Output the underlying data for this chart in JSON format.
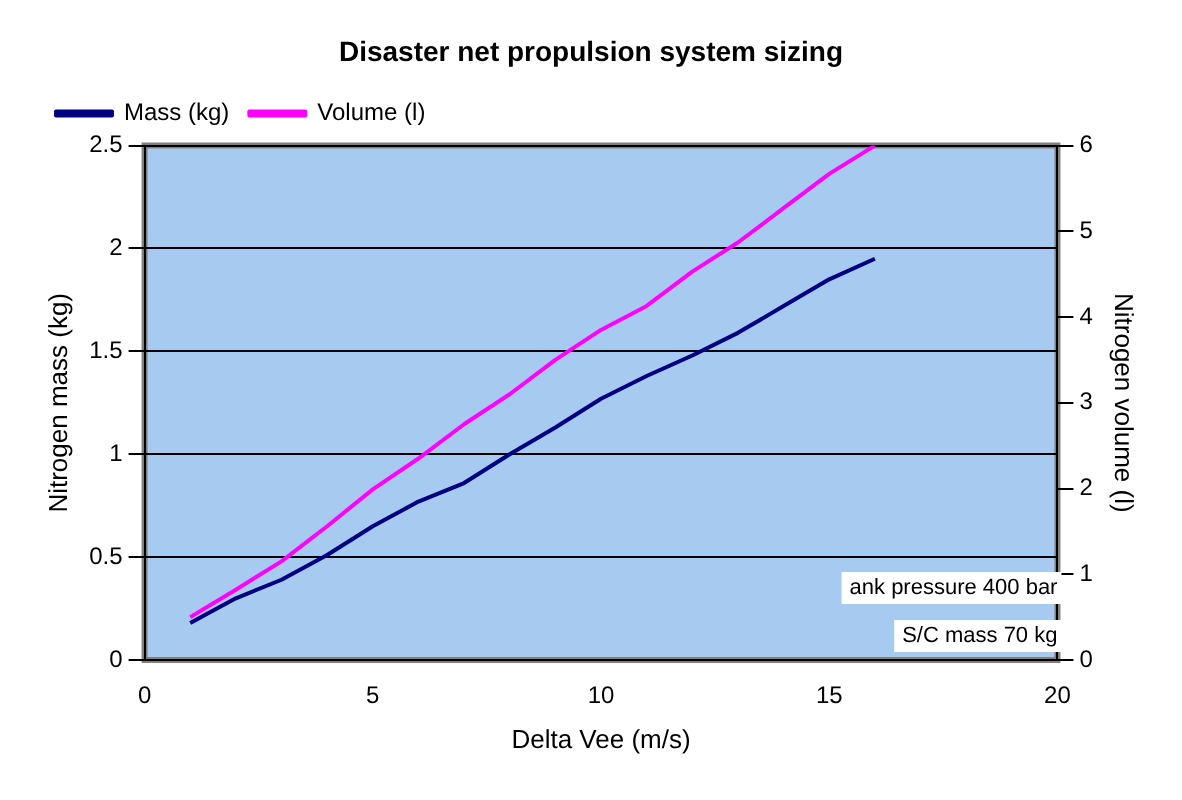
{
  "chart_data": {
    "type": "line",
    "title": "Disaster net propulsion system sizing",
    "xlabel": "Delta Vee (m/s)",
    "ylabel": "Nitrogen mass (kg)",
    "y2label": "Nitrogen volume (l)",
    "x": [
      1,
      2,
      3,
      4,
      5,
      6,
      7,
      8,
      9,
      10,
      11,
      12,
      13,
      14,
      15,
      16
    ],
    "series": [
      {
        "name": "Mass (kg)",
        "color": "#000080",
        "values": [
          0.18,
          0.3,
          0.39,
          0.51,
          0.65,
          0.77,
          0.86,
          1.0,
          1.13,
          1.27,
          1.38,
          1.48,
          1.59,
          1.72,
          1.85,
          1.95
        ]
      },
      {
        "name": "Volume (l)",
        "color": "#ff00ff",
        "axis": "y2",
        "values": [
          0.5,
          0.82,
          1.15,
          1.56,
          1.99,
          2.35,
          2.75,
          3.1,
          3.5,
          3.85,
          4.13,
          4.53,
          4.87,
          5.27,
          5.67,
          6.0
        ]
      }
    ],
    "xlim": [
      0,
      20
    ],
    "xticks": [
      0,
      5,
      10,
      15,
      20
    ],
    "ylim": [
      0,
      2.5
    ],
    "yticks": [
      0,
      0.5,
      1,
      1.5,
      2,
      2.5
    ],
    "y2lim": [
      0,
      6
    ],
    "y2ticks": [
      0,
      1,
      2,
      3,
      4,
      5,
      6
    ],
    "annotations": [
      "ank pressure 400 bar",
      "S/C mass 70 kg"
    ],
    "grid": "y",
    "legend": "top left",
    "marker": "none",
    "line_style": "solid"
  }
}
